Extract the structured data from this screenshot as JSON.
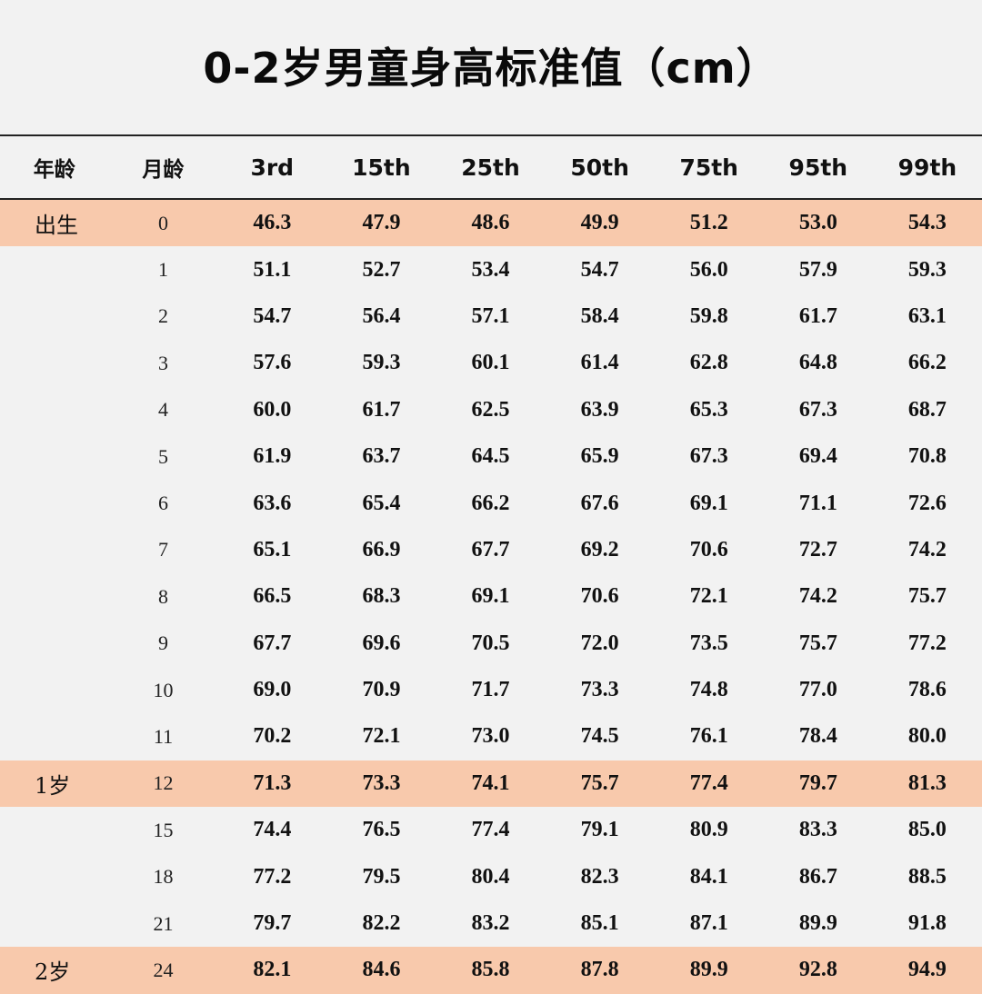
{
  "title": "0-2岁男童身高标准值（cm）",
  "chart_data": {
    "type": "table",
    "title": "0-2岁男童身高标准值（cm）",
    "columns": [
      "年龄",
      "月龄",
      "3rd",
      "15th",
      "25th",
      "50th",
      "75th",
      "95th",
      "99th"
    ],
    "highlight_color": "#f8c9ac",
    "rows": [
      {
        "age": "出生",
        "month": "0",
        "values": [
          "46.3",
          "47.9",
          "48.6",
          "49.9",
          "51.2",
          "53.0",
          "54.3"
        ],
        "highlight": true
      },
      {
        "age": "",
        "month": "1",
        "values": [
          "51.1",
          "52.7",
          "53.4",
          "54.7",
          "56.0",
          "57.9",
          "59.3"
        ],
        "highlight": false
      },
      {
        "age": "",
        "month": "2",
        "values": [
          "54.7",
          "56.4",
          "57.1",
          "58.4",
          "59.8",
          "61.7",
          "63.1"
        ],
        "highlight": false
      },
      {
        "age": "",
        "month": "3",
        "values": [
          "57.6",
          "59.3",
          "60.1",
          "61.4",
          "62.8",
          "64.8",
          "66.2"
        ],
        "highlight": false
      },
      {
        "age": "",
        "month": "4",
        "values": [
          "60.0",
          "61.7",
          "62.5",
          "63.9",
          "65.3",
          "67.3",
          "68.7"
        ],
        "highlight": false
      },
      {
        "age": "",
        "month": "5",
        "values": [
          "61.9",
          "63.7",
          "64.5",
          "65.9",
          "67.3",
          "69.4",
          "70.8"
        ],
        "highlight": false
      },
      {
        "age": "",
        "month": "6",
        "values": [
          "63.6",
          "65.4",
          "66.2",
          "67.6",
          "69.1",
          "71.1",
          "72.6"
        ],
        "highlight": false
      },
      {
        "age": "",
        "month": "7",
        "values": [
          "65.1",
          "66.9",
          "67.7",
          "69.2",
          "70.6",
          "72.7",
          "74.2"
        ],
        "highlight": false
      },
      {
        "age": "",
        "month": "8",
        "values": [
          "66.5",
          "68.3",
          "69.1",
          "70.6",
          "72.1",
          "74.2",
          "75.7"
        ],
        "highlight": false
      },
      {
        "age": "",
        "month": "9",
        "values": [
          "67.7",
          "69.6",
          "70.5",
          "72.0",
          "73.5",
          "75.7",
          "77.2"
        ],
        "highlight": false
      },
      {
        "age": "",
        "month": "10",
        "values": [
          "69.0",
          "70.9",
          "71.7",
          "73.3",
          "74.8",
          "77.0",
          "78.6"
        ],
        "highlight": false
      },
      {
        "age": "",
        "month": "11",
        "values": [
          "70.2",
          "72.1",
          "73.0",
          "74.5",
          "76.1",
          "78.4",
          "80.0"
        ],
        "highlight": false
      },
      {
        "age": "1岁",
        "month": "12",
        "values": [
          "71.3",
          "73.3",
          "74.1",
          "75.7",
          "77.4",
          "79.7",
          "81.3"
        ],
        "highlight": true
      },
      {
        "age": "",
        "month": "15",
        "values": [
          "74.4",
          "76.5",
          "77.4",
          "79.1",
          "80.9",
          "83.3",
          "85.0"
        ],
        "highlight": false
      },
      {
        "age": "",
        "month": "18",
        "values": [
          "77.2",
          "79.5",
          "80.4",
          "82.3",
          "84.1",
          "86.7",
          "88.5"
        ],
        "highlight": false
      },
      {
        "age": "",
        "month": "21",
        "values": [
          "79.7",
          "82.2",
          "83.2",
          "85.1",
          "87.1",
          "89.9",
          "91.8"
        ],
        "highlight": false
      },
      {
        "age": "2岁",
        "month": "24",
        "values": [
          "82.1",
          "84.6",
          "85.8",
          "87.8",
          "89.9",
          "92.8",
          "94.9"
        ],
        "highlight": true
      }
    ]
  }
}
